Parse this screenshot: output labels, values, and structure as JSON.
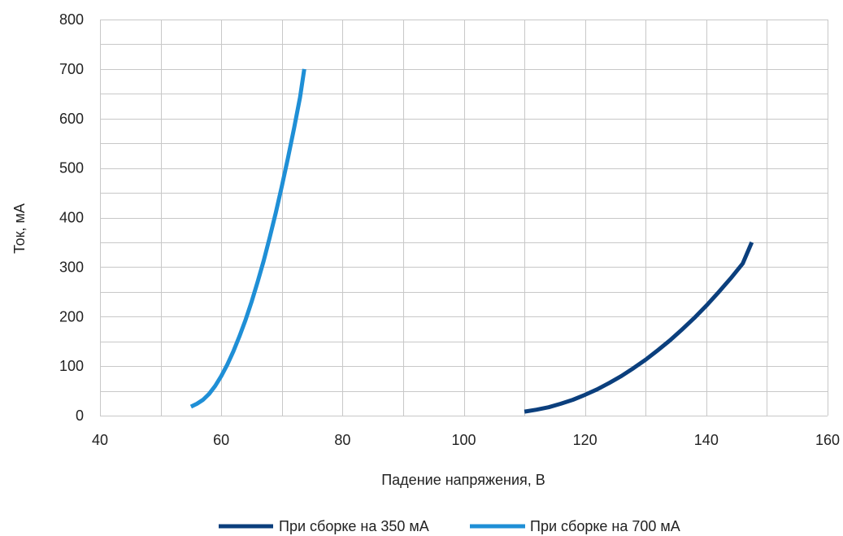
{
  "chart_data": {
    "type": "line",
    "xlabel": "Падение напряжения, В",
    "ylabel": "Ток, мА",
    "xlim": [
      40,
      160
    ],
    "ylim": [
      0,
      800
    ],
    "x_ticks": [
      40,
      60,
      80,
      100,
      120,
      140,
      160
    ],
    "y_ticks": [
      0,
      100,
      200,
      300,
      400,
      500,
      600,
      700,
      800
    ],
    "grid": true,
    "legend_position": "bottom",
    "series": [
      {
        "name": "При сборке на 350 мА",
        "color": "#0b3f7d",
        "points": [
          [
            110,
            8
          ],
          [
            112,
            12
          ],
          [
            114,
            17
          ],
          [
            116,
            24
          ],
          [
            118,
            32
          ],
          [
            120,
            42
          ],
          [
            122,
            53
          ],
          [
            124,
            66
          ],
          [
            126,
            80
          ],
          [
            128,
            96
          ],
          [
            130,
            113
          ],
          [
            132,
            132
          ],
          [
            134,
            152
          ],
          [
            136,
            174
          ],
          [
            138,
            197
          ],
          [
            140,
            222
          ],
          [
            142,
            249
          ],
          [
            144,
            277
          ],
          [
            146,
            307
          ],
          [
            147.5,
            350
          ]
        ]
      },
      {
        "name": "При сборке на 700 мА",
        "color": "#1f8fd6",
        "points": [
          [
            55,
            18
          ],
          [
            56,
            24
          ],
          [
            57,
            32
          ],
          [
            58,
            44
          ],
          [
            59,
            60
          ],
          [
            60,
            80
          ],
          [
            61,
            103
          ],
          [
            62,
            130
          ],
          [
            63,
            160
          ],
          [
            64,
            193
          ],
          [
            65,
            230
          ],
          [
            66,
            270
          ],
          [
            67,
            313
          ],
          [
            68,
            360
          ],
          [
            69,
            410
          ],
          [
            70,
            464
          ],
          [
            71,
            520
          ],
          [
            72,
            580
          ],
          [
            73,
            643
          ],
          [
            73.7,
            700
          ]
        ]
      }
    ]
  }
}
